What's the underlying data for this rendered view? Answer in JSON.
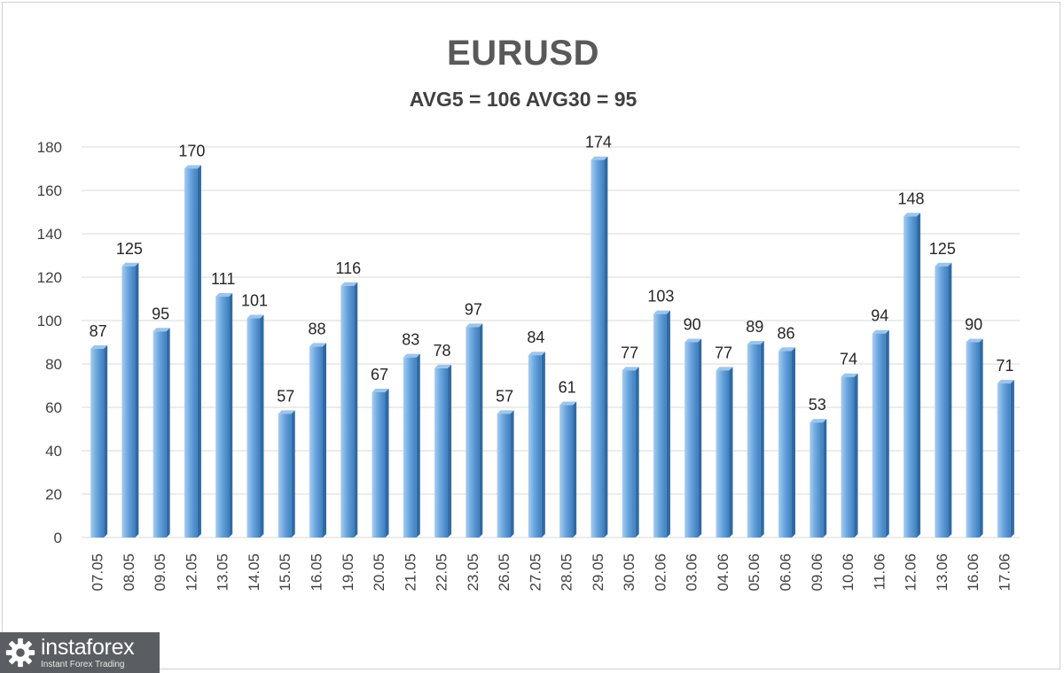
{
  "chart_data": {
    "type": "bar",
    "title": "EURUSD",
    "subtitle": "AVG5 = 106 AVG30 = 95",
    "categories": [
      "07.05",
      "08.05",
      "09.05",
      "12.05",
      "13.05",
      "14.05",
      "15.05",
      "16.05",
      "19.05",
      "20.05",
      "21.05",
      "22.05",
      "23.05",
      "26.05",
      "27.05",
      "28.05",
      "29.05",
      "30.05",
      "02.06",
      "03.06",
      "04.06",
      "05.06",
      "06.06",
      "09.06",
      "10.06",
      "11.06",
      "12.06",
      "13.06",
      "16.06",
      "17.06"
    ],
    "values": [
      87,
      125,
      95,
      170,
      111,
      101,
      57,
      88,
      116,
      67,
      83,
      78,
      97,
      57,
      84,
      61,
      174,
      77,
      103,
      90,
      77,
      89,
      86,
      53,
      74,
      94,
      148,
      125,
      90,
      71
    ],
    "ylim": [
      0,
      180
    ],
    "yticks": [
      0,
      20,
      40,
      60,
      80,
      100,
      120,
      140,
      160,
      180
    ],
    "grid": true,
    "bar_color": "#5b9bd5",
    "show_data_labels": true,
    "xtick_rotation": "vertical"
  },
  "logo": {
    "name": "instaforex",
    "tagline": "Instant Forex Trading",
    "icon": "gear-icon"
  }
}
